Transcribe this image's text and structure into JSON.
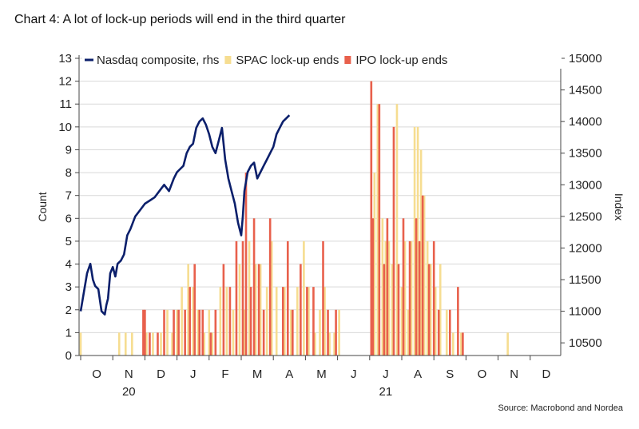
{
  "title": "Chart 4: A lot of lock-up periods will end in the third quarter",
  "source": "Source: Macrobond and Nordea",
  "chart_data": {
    "type": "bar",
    "title": "Chart 4: A lot of lock-up periods will end in the third quarter",
    "ylabel_left": "Count",
    "ylabel_right": "Index",
    "ylim_left": [
      0,
      13
    ],
    "ylim_right": [
      10300,
      15000
    ],
    "left_ticks": [
      "0",
      "1",
      "2",
      "3",
      "4",
      "5",
      "6",
      "7",
      "8",
      "9",
      "10",
      "11",
      "12",
      "13"
    ],
    "right_ticks": [
      {
        "label": "10500",
        "value": 10500
      },
      {
        "label": "11000",
        "value": 11000
      },
      {
        "label": "11500",
        "value": 11500
      },
      {
        "label": "12000",
        "value": 12000
      },
      {
        "label": "12500",
        "value": 12500
      },
      {
        "label": "13000",
        "value": 13000
      },
      {
        "label": "13500",
        "value": 13500
      },
      {
        "label": "14000",
        "value": 14000
      },
      {
        "label": "14500",
        "value": 14500
      },
      {
        "label": "15000",
        "value": 15000
      }
    ],
    "months": [
      "O",
      "N",
      "D",
      "J",
      "F",
      "M",
      "A",
      "M",
      "J",
      "J",
      "A",
      "S",
      "O",
      "N",
      "D"
    ],
    "year_labels": [
      {
        "label": "20",
        "month_index": 1
      },
      {
        "label": "21",
        "month_index": 9
      }
    ],
    "x_range_months": [
      -0.1,
      15
    ],
    "legend": [
      {
        "name": "Nasdaq composite, rhs",
        "color": "#0b1f6b",
        "kind": "line"
      },
      {
        "name": "SPAC lock-up ends",
        "color": "#f6dd91",
        "kind": "bar"
      },
      {
        "name": "IPO lock-up ends",
        "color": "#e8604c",
        "kind": "bar"
      }
    ],
    "legend_position": "top-left",
    "series_spac": {
      "name": "SPAC lock-up ends",
      "color": "#f6dd91",
      "x": [
        0,
        1.2,
        1.4,
        1.6,
        2.05,
        2.25,
        2.5,
        2.7,
        2.85,
        3.0,
        3.15,
        3.35,
        3.5,
        3.65,
        3.85,
        4.0,
        4.1,
        4.35,
        4.55,
        4.75,
        4.95,
        5.1,
        5.25,
        5.45,
        5.6,
        5.8,
        5.95,
        6.1,
        6.35,
        6.55,
        6.75,
        6.95,
        7.1,
        7.3,
        7.45,
        7.6,
        7.75,
        7.9,
        8.05,
        9.05,
        9.15,
        9.25,
        9.4,
        9.5,
        9.6,
        9.7,
        9.85,
        10.0,
        10.1,
        10.2,
        10.3,
        10.4,
        10.5,
        10.6,
        10.7,
        10.8,
        10.9,
        11.05,
        11.2,
        11.4,
        11.6,
        11.85,
        13.3
      ],
      "y": [
        1,
        1,
        1,
        1,
        1,
        1,
        1,
        2,
        1,
        2,
        3,
        4,
        3,
        2,
        1,
        2,
        1,
        3,
        3,
        2,
        4,
        2,
        5,
        4,
        4,
        3,
        5,
        3,
        3,
        2,
        3,
        5,
        3,
        1,
        2,
        3,
        1,
        1,
        2,
        12,
        8,
        11,
        6,
        5,
        5,
        4,
        11,
        3,
        5,
        2,
        5,
        10,
        10,
        9,
        7,
        5,
        4,
        3,
        4,
        2,
        1,
        1,
        1
      ]
    },
    "series_ipo": {
      "name": "IPO lock-up ends",
      "color": "#e8604c",
      "x": [
        1.95,
        2.0,
        2.15,
        2.4,
        2.6,
        2.9,
        3.05,
        3.25,
        3.4,
        3.55,
        3.7,
        3.8,
        4.05,
        4.2,
        4.45,
        4.65,
        4.85,
        5.05,
        5.15,
        5.3,
        5.4,
        5.55,
        5.7,
        5.9,
        6.3,
        6.45,
        6.6,
        6.85,
        7.05,
        7.25,
        7.55,
        7.7,
        7.95,
        9.05,
        9.1,
        9.3,
        9.45,
        9.55,
        9.75,
        9.9,
        10.05,
        10.25,
        10.45,
        10.55,
        10.65,
        10.85,
        11.0,
        11.15,
        11.5,
        11.75,
        11.9
      ],
      "y": [
        2,
        2,
        1,
        1,
        2,
        2,
        2,
        2,
        3,
        4,
        2,
        2,
        1,
        2,
        4,
        3,
        5,
        5,
        8,
        3,
        6,
        4,
        2,
        6,
        3,
        5,
        2,
        4,
        3,
        3,
        5,
        2,
        2,
        12,
        6,
        11,
        4,
        6,
        10,
        4,
        6,
        5,
        6,
        5,
        7,
        4,
        5,
        2,
        2,
        3,
        1
      ]
    },
    "series_nasdaq": {
      "name": "Nasdaq composite, rhs",
      "color": "#0b1f6b",
      "x": [
        0,
        0.1,
        0.2,
        0.3,
        0.38,
        0.45,
        0.55,
        0.65,
        0.75,
        0.8,
        0.85,
        0.92,
        1.0,
        1.08,
        1.15,
        1.25,
        1.35,
        1.45,
        1.55,
        1.7,
        1.85,
        2.0,
        2.15,
        2.3,
        2.45,
        2.6,
        2.75,
        2.9,
        3.0,
        3.1,
        3.2,
        3.3,
        3.4,
        3.5,
        3.6,
        3.7,
        3.8,
        3.9,
        4.0,
        4.1,
        4.2,
        4.3,
        4.4,
        4.5,
        4.6,
        4.7,
        4.8,
        4.9,
        5.0,
        5.05,
        5.1,
        5.2,
        5.3,
        5.4,
        5.5,
        5.6,
        5.7,
        5.8,
        5.9,
        6.0,
        6.1,
        6.2,
        6.3,
        6.4,
        6.5
      ],
      "y": [
        11000,
        11300,
        11600,
        11750,
        11500,
        11400,
        11350,
        11000,
        10950,
        11100,
        11200,
        11600,
        11700,
        11550,
        11750,
        11800,
        11900,
        12200,
        12300,
        12500,
        12600,
        12700,
        12750,
        12800,
        12900,
        13000,
        12900,
        13100,
        13200,
        13250,
        13300,
        13500,
        13600,
        13650,
        13900,
        14000,
        14050,
        13950,
        13800,
        13600,
        13500,
        13700,
        13900,
        13400,
        13100,
        12900,
        12700,
        12400,
        12200,
        12500,
        12900,
        13200,
        13300,
        13350,
        13100,
        13200,
        13300,
        13400,
        13500,
        13600,
        13800,
        13900,
        14000,
        14050,
        14100
      ]
    }
  }
}
